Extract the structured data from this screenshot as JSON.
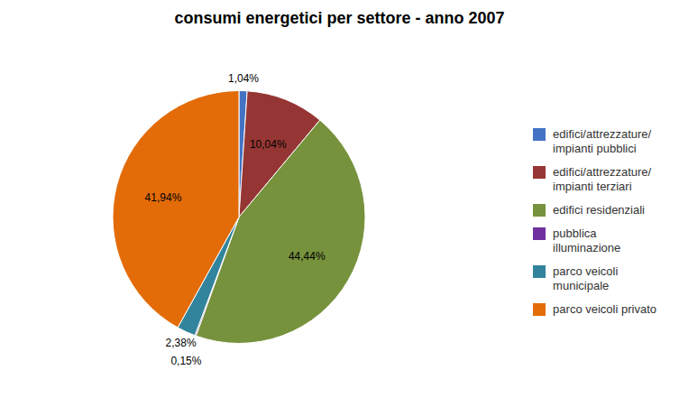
{
  "chart_data": {
    "type": "pie",
    "title": "consumi energetici per settore - anno 2007",
    "categories": [
      "edifici/attrezzature/\nimpianti pubblici",
      "edifici/attrezzature/\nimpianti terziari",
      "edifici residenziali",
      "pubblica\nilluminazione",
      "parco veicoli\nmunicipale",
      "parco veicoli privato"
    ],
    "values": [
      1.04,
      10.04,
      44.44,
      0.15,
      2.38,
      41.94
    ],
    "value_labels": [
      "1,04%",
      "10,04%",
      "44,44%",
      "0,15%",
      "2,38%",
      "41,94%"
    ],
    "colors": [
      "#4472C4",
      "#963634",
      "#76923C",
      "#7030A0",
      "#31849B",
      "#E36C09"
    ],
    "data_labels": true,
    "legend": "right"
  }
}
